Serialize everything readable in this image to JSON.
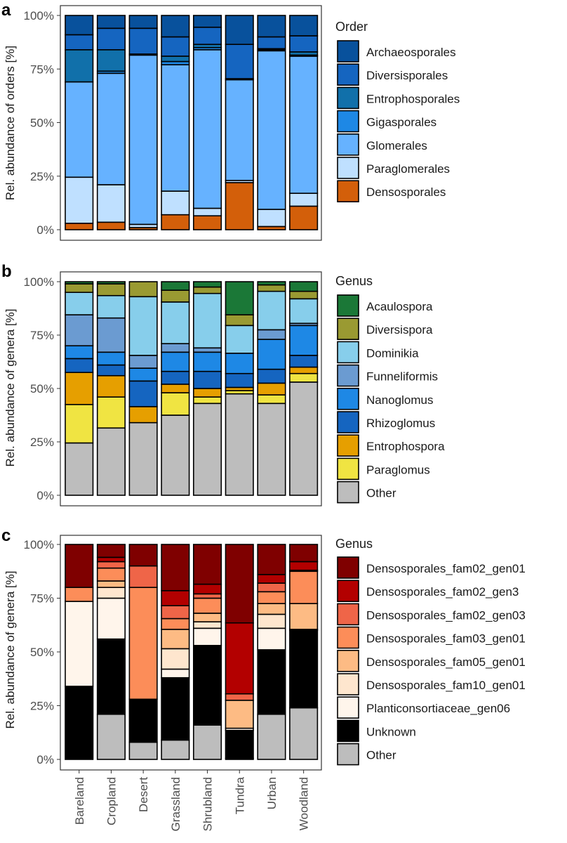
{
  "figure": {
    "categories": [
      "Bareland",
      "Cropland",
      "Desert",
      "Grassland",
      "Shrubland",
      "Tundra",
      "Urban",
      "Woodland"
    ]
  },
  "chart_data": [
    {
      "panel": "a",
      "type": "bar",
      "stacked": true,
      "ylabel": "Rel. abundance of orders [%]",
      "ylim": [
        0,
        100
      ],
      "yticks": [
        "0%",
        "25%",
        "50%",
        "75%",
        "100%"
      ],
      "legend_title": "Order",
      "categories": [
        "Bareland",
        "Cropland",
        "Desert",
        "Grassland",
        "Shrubland",
        "Tundra",
        "Urban",
        "Woodland"
      ],
      "series": [
        {
          "name": "Densosporales",
          "color": "#d35f0a",
          "values": [
            3,
            3.5,
            1,
            7,
            6.5,
            22,
            1.5,
            11
          ]
        },
        {
          "name": "Paraglomerales",
          "color": "#bfe0ff",
          "values": [
            21.5,
            17.5,
            1.5,
            11,
            3.5,
            1,
            8,
            6
          ]
        },
        {
          "name": "Glomerales",
          "color": "#66b2ff",
          "values": [
            44.5,
            52,
            79,
            59,
            74,
            47,
            74,
            64
          ]
        },
        {
          "name": "Gigasporales",
          "color": "#1e88e5",
          "values": [
            0,
            1,
            0,
            1.5,
            1,
            0.5,
            0.5,
            0.5
          ]
        },
        {
          "name": "Entrophosporales",
          "color": "#1170aa",
          "values": [
            15,
            10,
            0.5,
            2.5,
            1.5,
            0,
            0.5,
            1.5
          ]
        },
        {
          "name": "Diversisporales",
          "color": "#1565c0",
          "values": [
            7,
            10,
            12,
            9,
            8,
            16,
            5.5,
            7.5
          ]
        },
        {
          "name": "Archaeosporales",
          "color": "#08519c",
          "values": [
            9,
            6,
            6,
            10,
            5.5,
            13.5,
            10,
            9.5
          ]
        }
      ]
    },
    {
      "panel": "b",
      "type": "bar",
      "stacked": true,
      "ylabel": "Rel. abundance of genera [%]",
      "ylim": [
        0,
        100
      ],
      "yticks": [
        "0%",
        "25%",
        "50%",
        "75%",
        "100%"
      ],
      "legend_title": "Genus",
      "categories": [
        "Bareland",
        "Cropland",
        "Desert",
        "Grassland",
        "Shrubland",
        "Tundra",
        "Urban",
        "Woodland"
      ],
      "series": [
        {
          "name": "Other",
          "color": "#bdbdbd",
          "values": [
            24.5,
            31.5,
            34,
            37.5,
            43,
            47.5,
            43,
            53
          ]
        },
        {
          "name": "Paraglomus",
          "color": "#f0e442",
          "values": [
            18,
            14.5,
            0,
            10.5,
            3,
            1.5,
            4,
            4
          ]
        },
        {
          "name": "Entrophospora",
          "color": "#e69f00",
          "values": [
            15,
            10,
            7.5,
            4,
            4,
            1.5,
            5.5,
            3
          ]
        },
        {
          "name": "Rhizoglomus",
          "color": "#1565c0",
          "values": [
            6.5,
            5,
            12,
            6,
            8,
            6.5,
            6.5,
            5.5
          ]
        },
        {
          "name": "Nanoglomus",
          "color": "#1e88e5",
          "values": [
            6,
            6,
            6,
            9,
            9,
            9.5,
            14,
            14
          ]
        },
        {
          "name": "Funneliformis",
          "color": "#6b9bd1",
          "values": [
            14.5,
            16,
            6,
            4,
            2,
            0,
            4.5,
            1
          ]
        },
        {
          "name": "Dominikia",
          "color": "#87ceeb",
          "values": [
            10.5,
            10.5,
            27.5,
            19.5,
            25.5,
            13,
            18,
            11.5
          ]
        },
        {
          "name": "Diversispora",
          "color": "#9a9a32",
          "values": [
            4,
            5.5,
            7,
            5.5,
            3,
            5,
            3,
            3.5
          ]
        },
        {
          "name": "Acaulospora",
          "color": "#1b7837",
          "values": [
            1,
            1,
            0,
            4,
            2.5,
            15.5,
            1.5,
            4.5
          ]
        }
      ]
    },
    {
      "panel": "c",
      "type": "bar",
      "stacked": true,
      "ylabel": "Rel. abundance of genera [%]",
      "ylim": [
        0,
        100
      ],
      "yticks": [
        "0%",
        "25%",
        "50%",
        "75%",
        "100%"
      ],
      "legend_title": "Genus",
      "categories": [
        "Bareland",
        "Cropland",
        "Desert",
        "Grassland",
        "Shrubland",
        "Tundra",
        "Urban",
        "Woodland"
      ],
      "series": [
        {
          "name": "Other",
          "color": "#bdbdbd",
          "values": [
            0,
            21,
            8,
            9,
            16,
            0.5,
            21,
            24
          ]
        },
        {
          "name": "Unknown",
          "color": "#000000",
          "values": [
            34,
            35,
            20,
            29,
            37,
            13,
            30,
            36
          ]
        },
        {
          "name": "Planticonsortiaceae_gen06",
          "color": "#fff5eb",
          "values": [
            39.5,
            19,
            0,
            4,
            8,
            1,
            10,
            0.5
          ]
        },
        {
          "name": "Densosporales_fam10_gen01",
          "color": "#fee6ce",
          "values": [
            0,
            5,
            0,
            9.5,
            3,
            0,
            6.5,
            0
          ]
        },
        {
          "name": "Densosporales_fam05_gen01",
          "color": "#fdbb84",
          "values": [
            0,
            3,
            0,
            9,
            4,
            13,
            5,
            12
          ]
        },
        {
          "name": "Densosporales_fam03_gen01",
          "color": "#fc8d59",
          "values": [
            6.5,
            6,
            52,
            5,
            7,
            0,
            5.5,
            15
          ]
        },
        {
          "name": "Densosporales_fam02_gen03",
          "color": "#ef6548",
          "values": [
            0,
            3,
            10,
            6,
            2,
            3,
            4,
            0.5
          ]
        },
        {
          "name": "Densosporales_fam02_gen3",
          "color": "#b30000",
          "values": [
            0,
            2,
            0,
            7,
            4.5,
            33,
            4,
            4
          ]
        },
        {
          "name": "Densosporales_fam02_gen01",
          "color": "#7f0000",
          "values": [
            20,
            6,
            10,
            21.5,
            18.5,
            36.5,
            14,
            8
          ]
        }
      ]
    }
  ]
}
